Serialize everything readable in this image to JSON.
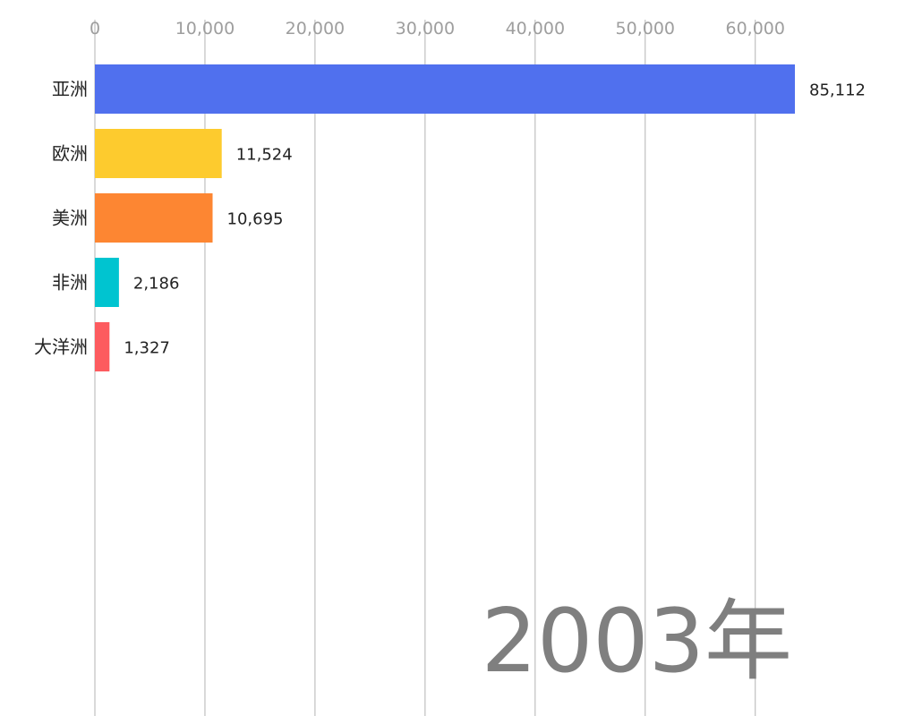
{
  "chart_data": {
    "type": "bar",
    "orientation": "horizontal",
    "categories": [
      "亚洲",
      "欧洲",
      "美洲",
      "非洲",
      "大洋洲"
    ],
    "values": [
      85112,
      11524,
      10695,
      2186,
      1327
    ],
    "value_labels": [
      "85,112",
      "11,524",
      "10,695",
      "2,186",
      "1,327"
    ],
    "colors": [
      "#5070ee",
      "#fdcb2e",
      "#fd8632",
      "#00c4d0",
      "#fd5b5f"
    ],
    "xlim": [
      0,
      63600
    ],
    "x_ticks": [
      0,
      10000,
      20000,
      30000,
      40000,
      50000,
      60000
    ],
    "x_tick_labels": [
      "0",
      "10,000",
      "20,000",
      "30,000",
      "40,000",
      "50,000",
      "60,000"
    ],
    "axis_position": "top",
    "grid": true,
    "year_label": "2003年"
  }
}
